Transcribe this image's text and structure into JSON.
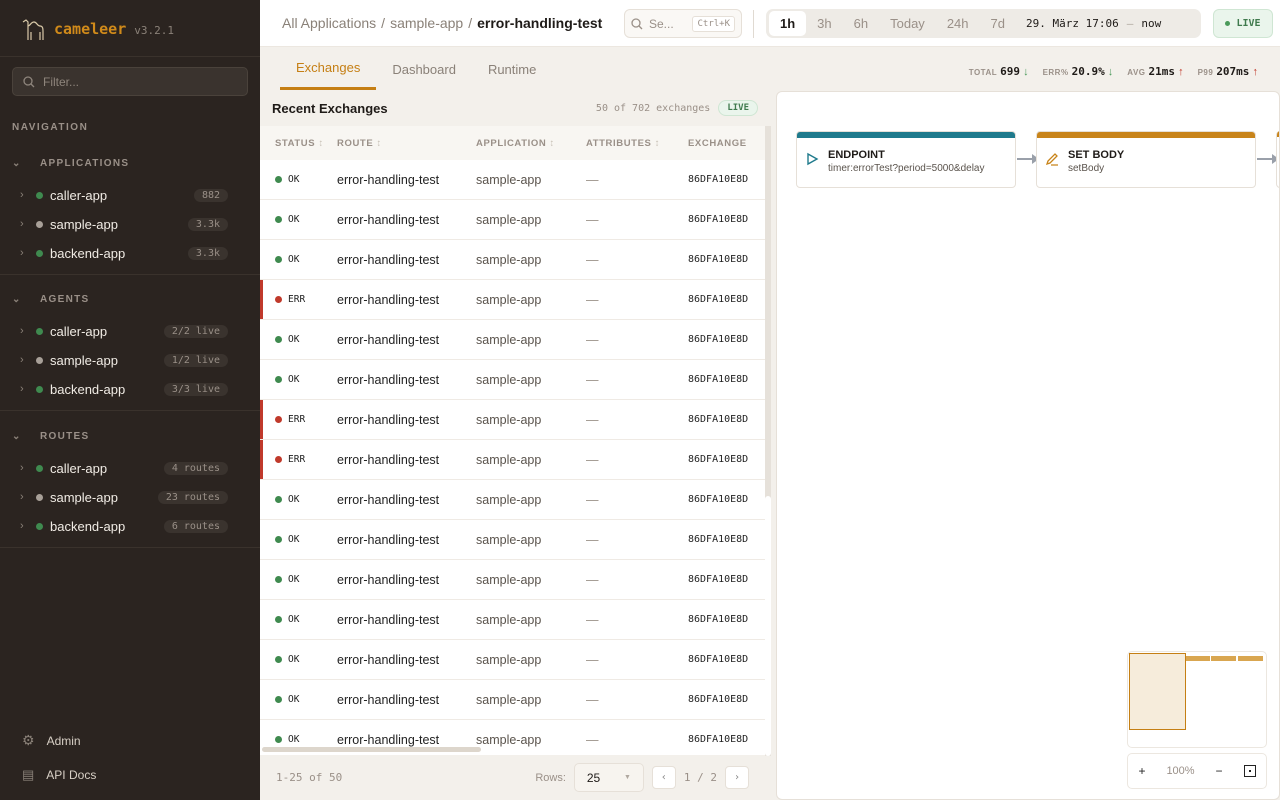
{
  "app": {
    "name": "cameleer",
    "version": "v3.2.1"
  },
  "sidebar": {
    "filter_placeholder": "Filter...",
    "nav_label": "NAVIGATION",
    "sections": [
      {
        "title": "APPLICATIONS",
        "items": [
          {
            "label": "caller-app",
            "badge": "882",
            "status": "green"
          },
          {
            "label": "sample-app",
            "badge": "3.3k",
            "status": "gray"
          },
          {
            "label": "backend-app",
            "badge": "3.3k",
            "status": "green"
          }
        ]
      },
      {
        "title": "AGENTS",
        "items": [
          {
            "label": "caller-app",
            "badge": "2/2 live",
            "status": "green"
          },
          {
            "label": "sample-app",
            "badge": "1/2 live",
            "status": "gray"
          },
          {
            "label": "backend-app",
            "badge": "3/3 live",
            "status": "green"
          }
        ]
      },
      {
        "title": "ROUTES",
        "items": [
          {
            "label": "caller-app",
            "badge": "4 routes",
            "status": "green"
          },
          {
            "label": "sample-app",
            "badge": "23 routes",
            "status": "gray"
          },
          {
            "label": "backend-app",
            "badge": "6 routes",
            "status": "green"
          }
        ]
      }
    ],
    "footer": [
      {
        "label": "Admin",
        "icon": "gear-icon"
      },
      {
        "label": "API Docs",
        "icon": "document-icon"
      }
    ]
  },
  "breadcrumb": [
    "All Applications",
    "sample-app",
    "error-handling-test"
  ],
  "search": {
    "placeholder": "Se...",
    "shortcut": "Ctrl+K"
  },
  "time_range": {
    "options": [
      "1h",
      "3h",
      "6h",
      "Today",
      "24h",
      "7d"
    ],
    "selected": "1h",
    "from": "29. März 17:06",
    "sep": "—",
    "to": "now"
  },
  "live_label": "LIVE",
  "tabs": [
    {
      "label": "Exchanges",
      "active": true
    },
    {
      "label": "Dashboard"
    },
    {
      "label": "Runtime"
    }
  ],
  "kpis": [
    {
      "label": "TOTAL",
      "value": "699",
      "trend": "down"
    },
    {
      "label": "ERR%",
      "value": "20.9%",
      "trend": "down"
    },
    {
      "label": "AVG",
      "value": "21ms",
      "trend": "up"
    },
    {
      "label": "P99",
      "value": "207ms",
      "trend": "up"
    }
  ],
  "exchanges": {
    "title": "Recent Exchanges",
    "count": "50 of 702 exchanges",
    "live": "LIVE",
    "columns": [
      "STATUS",
      "ROUTE",
      "APPLICATION",
      "ATTRIBUTES",
      "EXCHANGE"
    ],
    "rows": [
      {
        "status": "OK",
        "route": "error-handling-test",
        "app": "sample-app",
        "attrs": "—",
        "id": "86DFA10E8D"
      },
      {
        "status": "OK",
        "route": "error-handling-test",
        "app": "sample-app",
        "attrs": "—",
        "id": "86DFA10E8D"
      },
      {
        "status": "OK",
        "route": "error-handling-test",
        "app": "sample-app",
        "attrs": "—",
        "id": "86DFA10E8D"
      },
      {
        "status": "ERR",
        "route": "error-handling-test",
        "app": "sample-app",
        "attrs": "—",
        "id": "86DFA10E8D"
      },
      {
        "status": "OK",
        "route": "error-handling-test",
        "app": "sample-app",
        "attrs": "—",
        "id": "86DFA10E8D"
      },
      {
        "status": "OK",
        "route": "error-handling-test",
        "app": "sample-app",
        "attrs": "—",
        "id": "86DFA10E8D"
      },
      {
        "status": "ERR",
        "route": "error-handling-test",
        "app": "sample-app",
        "attrs": "—",
        "id": "86DFA10E8D"
      },
      {
        "status": "ERR",
        "route": "error-handling-test",
        "app": "sample-app",
        "attrs": "—",
        "id": "86DFA10E8D"
      },
      {
        "status": "OK",
        "route": "error-handling-test",
        "app": "sample-app",
        "attrs": "—",
        "id": "86DFA10E8D"
      },
      {
        "status": "OK",
        "route": "error-handling-test",
        "app": "sample-app",
        "attrs": "—",
        "id": "86DFA10E8D"
      },
      {
        "status": "OK",
        "route": "error-handling-test",
        "app": "sample-app",
        "attrs": "—",
        "id": "86DFA10E8D"
      },
      {
        "status": "OK",
        "route": "error-handling-test",
        "app": "sample-app",
        "attrs": "—",
        "id": "86DFA10E8D"
      },
      {
        "status": "OK",
        "route": "error-handling-test",
        "app": "sample-app",
        "attrs": "—",
        "id": "86DFA10E8D"
      },
      {
        "status": "OK",
        "route": "error-handling-test",
        "app": "sample-app",
        "attrs": "—",
        "id": "86DFA10E8D"
      },
      {
        "status": "OK",
        "route": "error-handling-test",
        "app": "sample-app",
        "attrs": "—",
        "id": "86DFA10E8D"
      }
    ],
    "range": "1-25 of 50",
    "rows_label": "Rows:",
    "rows_value": "25",
    "page": "1 / 2"
  },
  "diagram": {
    "nodes": [
      {
        "title": "ENDPOINT",
        "sub": "timer:errorTest?period=5000&delay",
        "color": "#1f7a8c",
        "icon": "play-icon"
      },
      {
        "title": "SET BODY",
        "sub": "setBody",
        "color": "#c8841a",
        "icon": "pencil-icon"
      }
    ],
    "zoom": "100%"
  },
  "colors": {
    "accent": "#c57f14",
    "ok": "#3f8a4f",
    "err": "#c0392b",
    "idle": "#a8a098"
  }
}
